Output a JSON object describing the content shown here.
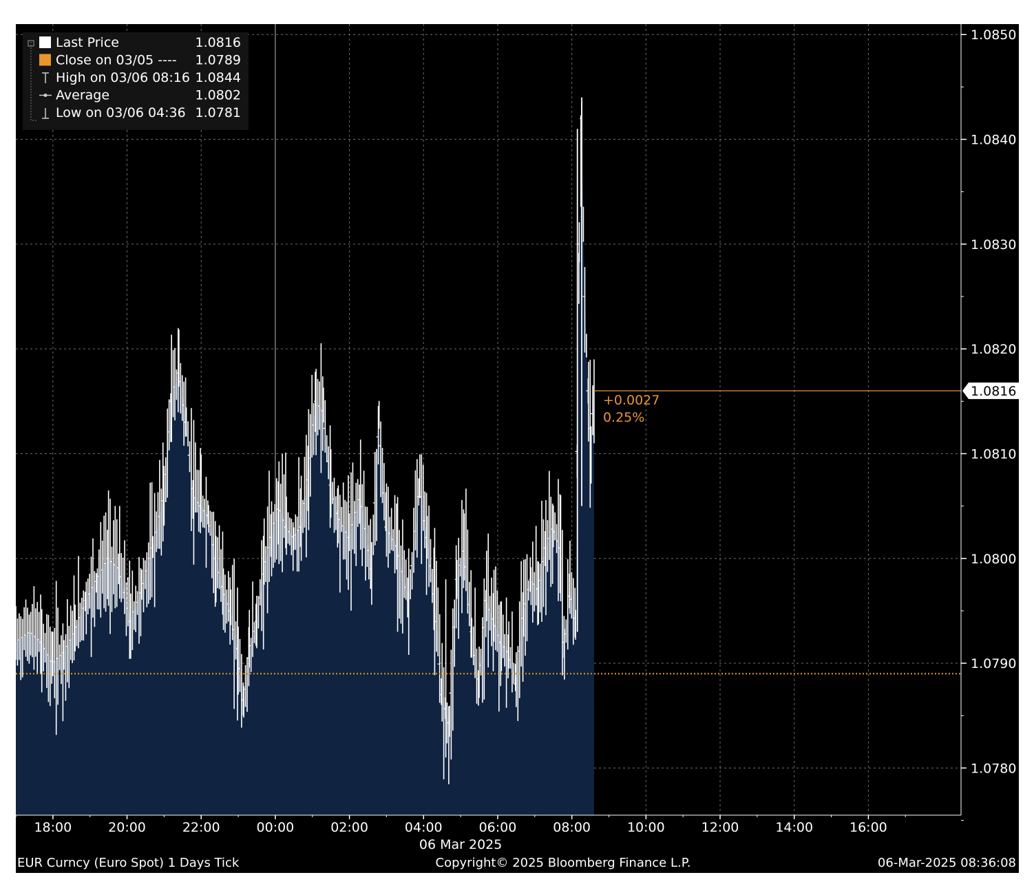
{
  "colors": {
    "background": "#000000",
    "fill": "#102340",
    "tick_line": "#ffffff",
    "close_line": "#e8a21c",
    "last_line": "#e8963c",
    "grid": "#6f6f6f",
    "last_box_bg": "#ffffff",
    "last_box_text": "#000000"
  },
  "legend": [
    {
      "label": "Last Price",
      "value": "1.0816",
      "marker": "white-square"
    },
    {
      "label": "Close on 03/05 ----",
      "value": "1.0789",
      "marker": "orange-square"
    },
    {
      "label": "High on 03/06 08:16",
      "value": "1.0844",
      "marker": "high-marker"
    },
    {
      "label": "Average",
      "value": "1.0802",
      "marker": "average-marker"
    },
    {
      "label": "Low on 03/06 04:36",
      "value": "1.0781",
      "marker": "low-marker"
    }
  ],
  "last_price_label": "1.0816",
  "change": {
    "absolute": "+0.0027",
    "percent": "0.25%"
  },
  "footer": {
    "left": "EUR Curncy (Euro Spot) 1 Days  Tick",
    "center": "Copyright© 2025 Bloomberg Finance L.P.",
    "right": "06-Mar-2025 08:36:08"
  },
  "date_label": "06 Mar 2025",
  "chart_data": {
    "type": "area",
    "title": "",
    "xlabel": "",
    "ylabel": "",
    "x_unit": "hours relative to 06 Mar 2025 00:00",
    "xlim": [
      -7.0,
      18.5
    ],
    "ylim": [
      1.07755,
      1.0851
    ],
    "y_ticks": [
      "1.0850",
      "1.0840",
      "1.0830",
      "1.0820",
      "1.0810",
      "1.0800",
      "1.0790",
      "1.0780"
    ],
    "y_tick_values": [
      1.085,
      1.084,
      1.083,
      1.082,
      1.081,
      1.08,
      1.079,
      1.078
    ],
    "x_ticks": [
      "18:00",
      "20:00",
      "22:00",
      "00:00",
      "02:00",
      "04:00",
      "06:00",
      "08:00",
      "10:00",
      "12:00",
      "14:00",
      "16:00"
    ],
    "x_tick_values": [
      -6,
      -4,
      -2,
      0,
      2,
      4,
      6,
      8,
      10,
      12,
      14,
      16
    ],
    "grid": true,
    "legend_position": "top-left",
    "close_prev": 1.0789,
    "last_price": 1.0816,
    "high": 1.0844,
    "average": 1.0802,
    "low": 1.0781,
    "series": [
      {
        "name": "Last Price",
        "points": [
          [
            -7.0,
            1.0792
          ],
          [
            -6.6,
            1.0793
          ],
          [
            -6.3,
            1.0792
          ],
          [
            -6.0,
            1.079
          ],
          [
            -5.7,
            1.0791
          ],
          [
            -5.4,
            1.0793
          ],
          [
            -5.1,
            1.0796
          ],
          [
            -4.8,
            1.0798
          ],
          [
            -4.5,
            1.08
          ],
          [
            -4.2,
            1.0799
          ],
          [
            -3.9,
            1.0794
          ],
          [
            -3.6,
            1.0797
          ],
          [
            -3.3,
            1.0801
          ],
          [
            -3.0,
            1.0806
          ],
          [
            -2.8,
            1.0815
          ],
          [
            -2.6,
            1.0818
          ],
          [
            -2.4,
            1.0813
          ],
          [
            -2.2,
            1.0806
          ],
          [
            -2.0,
            1.0805
          ],
          [
            -1.8,
            1.0804
          ],
          [
            -1.6,
            1.08
          ],
          [
            -1.4,
            1.0797
          ],
          [
            -1.2,
            1.0795
          ],
          [
            -1.0,
            1.0791
          ],
          [
            -0.85,
            1.0786
          ],
          [
            -0.7,
            1.0791
          ],
          [
            -0.5,
            1.0794
          ],
          [
            -0.3,
            1.0799
          ],
          [
            -0.1,
            1.0802
          ],
          [
            0.1,
            1.0805
          ],
          [
            0.3,
            1.0803
          ],
          [
            0.5,
            1.0802
          ],
          [
            0.7,
            1.0803
          ],
          [
            0.9,
            1.0808
          ],
          [
            1.1,
            1.0815
          ],
          [
            1.3,
            1.0814
          ],
          [
            1.5,
            1.0807
          ],
          [
            1.7,
            1.0804
          ],
          [
            2.0,
            1.0802
          ],
          [
            2.3,
            1.0806
          ],
          [
            2.6,
            1.0799
          ],
          [
            2.8,
            1.0813
          ],
          [
            3.0,
            1.0803
          ],
          [
            3.3,
            1.0801
          ],
          [
            3.6,
            1.0796
          ],
          [
            3.9,
            1.0807
          ],
          [
            4.1,
            1.0802
          ],
          [
            4.3,
            1.0796
          ],
          [
            4.5,
            1.0787
          ],
          [
            4.7,
            1.0784
          ],
          [
            4.9,
            1.0798
          ],
          [
            5.1,
            1.0801
          ],
          [
            5.3,
            1.0793
          ],
          [
            5.5,
            1.0788
          ],
          [
            5.7,
            1.0796
          ],
          [
            5.9,
            1.0794
          ],
          [
            6.1,
            1.0792
          ],
          [
            6.3,
            1.0791
          ],
          [
            6.5,
            1.0788
          ],
          [
            6.7,
            1.0795
          ],
          [
            6.9,
            1.0798
          ],
          [
            7.1,
            1.0797
          ],
          [
            7.3,
            1.0801
          ],
          [
            7.5,
            1.0803
          ],
          [
            7.7,
            1.0801
          ],
          [
            7.8,
            1.0791
          ],
          [
            7.95,
            1.0797
          ],
          [
            8.1,
            1.0794
          ],
          [
            8.2,
            1.083
          ],
          [
            8.267,
            1.0842
          ],
          [
            8.35,
            1.0825
          ],
          [
            8.45,
            1.0815
          ],
          [
            8.52,
            1.0811
          ],
          [
            8.6,
            1.0816
          ]
        ]
      }
    ]
  }
}
